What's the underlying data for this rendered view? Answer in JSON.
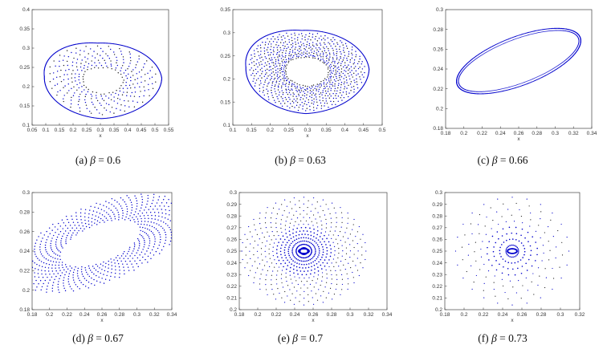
{
  "chart_data": [
    {
      "type": "scatter",
      "caption": "(a) β = 0.6",
      "caption_prefix": "(a)",
      "caption_value": "0.6",
      "xlabel": "x",
      "ylabel": "",
      "xlim": [
        0.05,
        0.55
      ],
      "ylim": [
        0.1,
        0.4
      ],
      "xticks": [
        "0.05",
        "0.1",
        "0.15",
        "0.2",
        "0.25",
        "0.3",
        "0.35",
        "0.4",
        "0.45",
        "0.5",
        "0.55"
      ],
      "yticks": [
        "0.1",
        "0.15",
        "0.2",
        "0.25",
        "0.3",
        "0.35",
        "0.4"
      ],
      "pattern": "limit-cycle-dense",
      "cycle": {
        "cx": 0.31,
        "cy": 0.215,
        "rx": 0.215,
        "ry": 0.098,
        "skew": 0.45,
        "rotation_deg": 0
      },
      "color": "#0000cc"
    },
    {
      "type": "scatter",
      "caption": "(b) β = 0.63",
      "caption_prefix": "(b)",
      "caption_value": "0.63",
      "xlabel": "x",
      "ylabel": "",
      "xlim": [
        0.1,
        0.5
      ],
      "ylim": [
        0.1,
        0.35
      ],
      "xticks": [
        "0.1",
        "0.15",
        "0.2",
        "0.25",
        "0.3",
        "0.35",
        "0.4",
        "0.45",
        "0.5"
      ],
      "yticks": [
        "0.1",
        "0.15",
        "0.2",
        "0.25",
        "0.3",
        "0.35"
      ],
      "pattern": "limit-cycle-spiral",
      "cycle": {
        "cx": 0.3,
        "cy": 0.215,
        "rx": 0.165,
        "ry": 0.09,
        "skew": 0.45,
        "rotation_deg": 0
      },
      "color": "#0000cc"
    },
    {
      "type": "scatter",
      "caption": "(c) β = 0.66",
      "caption_prefix": "(c)",
      "caption_value": "0.66",
      "xlabel": "x",
      "ylabel": "",
      "xlim": [
        0.18,
        0.34
      ],
      "ylim": [
        0.18,
        0.3
      ],
      "xticks": [
        "0.18",
        "0.2",
        "0.22",
        "0.24",
        "0.26",
        "0.28",
        "0.3",
        "0.32",
        "0.34"
      ],
      "yticks": [
        "0.18",
        "0.2",
        "0.22",
        "0.24",
        "0.26",
        "0.28",
        "0.3"
      ],
      "pattern": "limit-cycle-thin",
      "cycle": {
        "cx": 0.26,
        "cy": 0.248,
        "rx": 0.078,
        "ry": 0.027,
        "skew": 0,
        "rotation_deg": 30
      },
      "color": "#0000cc"
    },
    {
      "type": "scatter",
      "caption": "(d) β = 0.67",
      "caption_prefix": "(d)",
      "caption_value": "0.67",
      "xlabel": "x",
      "ylabel": "",
      "xlim": [
        0.18,
        0.34
      ],
      "ylim": [
        0.18,
        0.3
      ],
      "xticks": [
        "0.18",
        "0.2",
        "0.22",
        "0.24",
        "0.26",
        "0.28",
        "0.3",
        "0.32",
        "0.34"
      ],
      "yticks": [
        "0.18",
        "0.2",
        "0.22",
        "0.24",
        "0.26",
        "0.28",
        "0.3"
      ],
      "pattern": "spiral-onto-cycle",
      "cycle": {
        "cx": 0.258,
        "cy": 0.248,
        "rx": 0.05,
        "ry": 0.02,
        "skew": 0,
        "rotation_deg": 30
      },
      "color": "#0000cc"
    },
    {
      "type": "scatter",
      "caption": "(e) β = 0.7",
      "caption_prefix": "(e)",
      "caption_value": "0.7",
      "xlabel": "x",
      "ylabel": "",
      "xlim": [
        0.18,
        0.34
      ],
      "ylim": [
        0.2,
        0.3
      ],
      "xticks": [
        "0.18",
        "0.2",
        "0.22",
        "0.24",
        "0.26",
        "0.28",
        "0.3",
        "0.32",
        "0.34"
      ],
      "yticks": [
        "0.2",
        "0.21",
        "0.22",
        "0.23",
        "0.24",
        "0.25",
        "0.26",
        "0.27",
        "0.28",
        "0.29",
        "0.3"
      ],
      "pattern": "stable-focus",
      "focus": {
        "x": 0.25,
        "y": 0.25
      },
      "color": "#0000cc"
    },
    {
      "type": "scatter",
      "caption": "(f) β = 0.73",
      "caption_prefix": "(f)",
      "caption_value": "0.73",
      "xlabel": "x",
      "ylabel": "",
      "xlim": [
        0.18,
        0.32
      ],
      "ylim": [
        0.2,
        0.3
      ],
      "xticks": [
        "0.18",
        "0.2",
        "0.22",
        "0.24",
        "0.26",
        "0.28",
        "0.3",
        "0.32"
      ],
      "yticks": [
        "0.2",
        "0.21",
        "0.22",
        "0.23",
        "0.24",
        "0.25",
        "0.26",
        "0.27",
        "0.28",
        "0.29",
        "0.3"
      ],
      "pattern": "stable-focus-sparse",
      "focus": {
        "x": 0.25,
        "y": 0.25
      },
      "color": "#0000cc"
    }
  ]
}
